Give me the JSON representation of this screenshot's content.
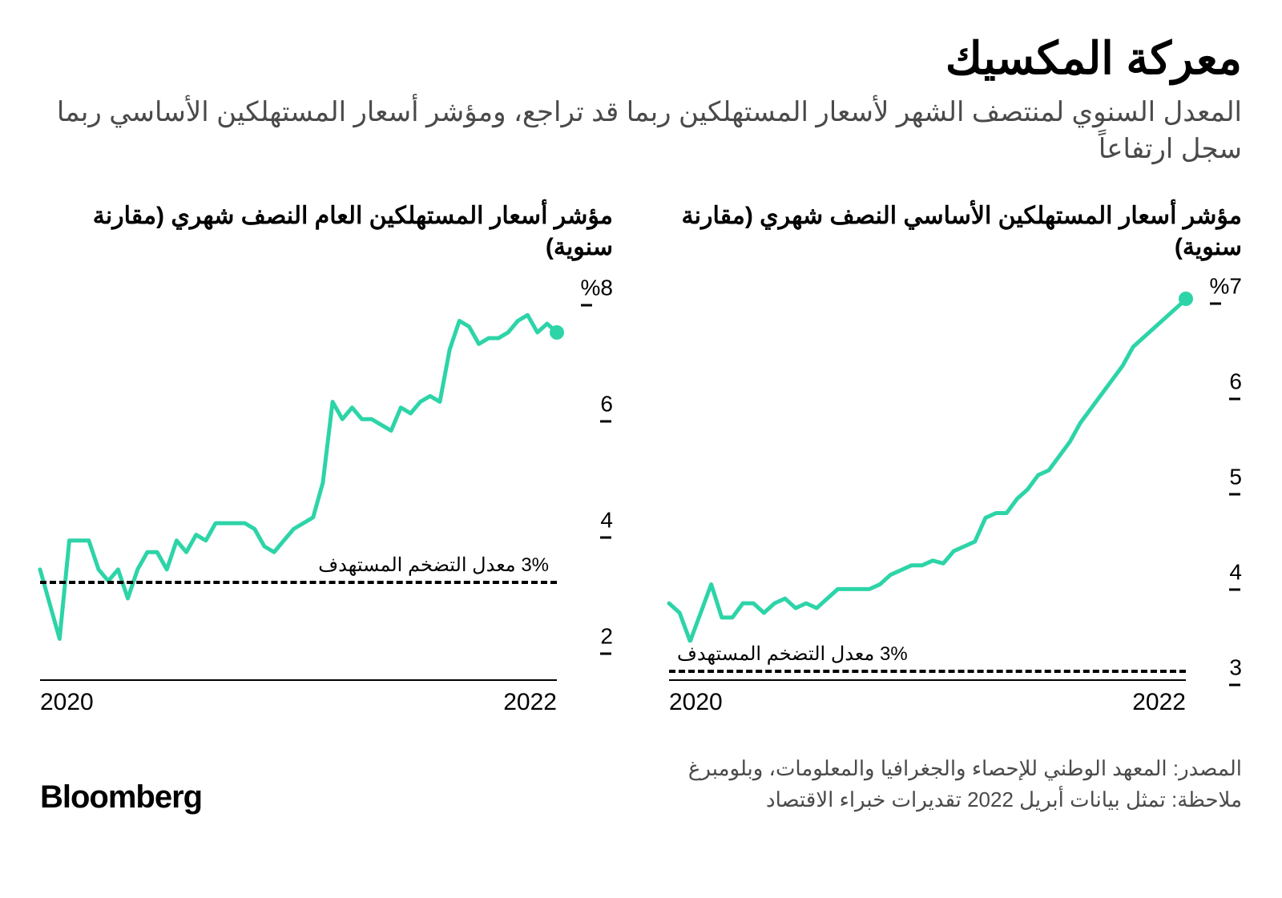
{
  "headline": "معركة المكسيك",
  "subhead": "المعدل السنوي لمنتصف الشهر لأسعار المستهلكين ربما قد تراجع، ومؤشر أسعار المستهلكين الأساسي ربما سجل ارتفاعاً",
  "brand": "Bloomberg",
  "footer_source": "المصدر: المعهد الوطني للإحصاء والجغرافيا والمعلومات، وبلومبرغ",
  "footer_note": "ملاحظة: تمثل بيانات أبريل 2022 تقديرات خبراء الاقتصاد",
  "colors": {
    "line": "#2dd4a7",
    "marker": "#2dd4a7",
    "axis": "#000000",
    "text_primary": "#000000",
    "text_secondary": "#4a4a4a",
    "background": "#ffffff",
    "dash": "#000000"
  },
  "line_style": {
    "stroke_width": 5,
    "marker_radius": 9
  },
  "chart_right": {
    "title": "مؤشر أسعار المستهلكين الأساسي النصف شهري (مقارنة سنوية)",
    "type": "line",
    "x_labels": [
      "2020",
      "2022"
    ],
    "y_ticks": [
      3,
      4,
      5,
      6,
      7
    ],
    "y_top_label": "%7",
    "ylim": [
      2.9,
      7.1
    ],
    "target_value": 3,
    "target_label": "3% معدل التضخم المستهدف",
    "target_label_side": "left",
    "values": [
      3.7,
      3.6,
      3.3,
      3.6,
      3.9,
      3.55,
      3.55,
      3.7,
      3.7,
      3.6,
      3.7,
      3.75,
      3.65,
      3.7,
      3.65,
      3.75,
      3.85,
      3.85,
      3.85,
      3.85,
      3.9,
      4.0,
      4.05,
      4.1,
      4.1,
      4.15,
      4.12,
      4.25,
      4.3,
      4.35,
      4.6,
      4.65,
      4.65,
      4.8,
      4.9,
      5.05,
      5.1,
      5.25,
      5.4,
      5.6,
      5.75,
      5.9,
      6.05,
      6.2,
      6.4,
      6.5,
      6.6,
      6.7,
      6.8,
      6.9
    ]
  },
  "chart_left": {
    "title": "مؤشر أسعار المستهلكين العام النصف شهري (مقارنة سنوية)",
    "type": "line",
    "x_labels": [
      "2020",
      "2022"
    ],
    "y_ticks": [
      2,
      4,
      6,
      8
    ],
    "y_top_label": "%8",
    "ylim": [
      1.3,
      8.2
    ],
    "target_value": 3,
    "target_label": "3% معدل التضخم المستهدف",
    "target_label_side": "right",
    "values": [
      3.2,
      2.6,
      2.0,
      3.7,
      3.7,
      3.7,
      3.2,
      3.0,
      3.2,
      2.7,
      3.2,
      3.5,
      3.5,
      3.2,
      3.7,
      3.5,
      3.8,
      3.7,
      4.0,
      4.0,
      4.0,
      4.0,
      3.9,
      3.6,
      3.5,
      3.7,
      3.9,
      4.0,
      4.1,
      4.7,
      6.1,
      5.8,
      6.0,
      5.8,
      5.8,
      5.7,
      5.6,
      6.0,
      5.9,
      6.1,
      6.2,
      6.1,
      7.0,
      7.5,
      7.4,
      7.1,
      7.2,
      7.2,
      7.3,
      7.5,
      7.6,
      7.3,
      7.45,
      7.3
    ]
  }
}
